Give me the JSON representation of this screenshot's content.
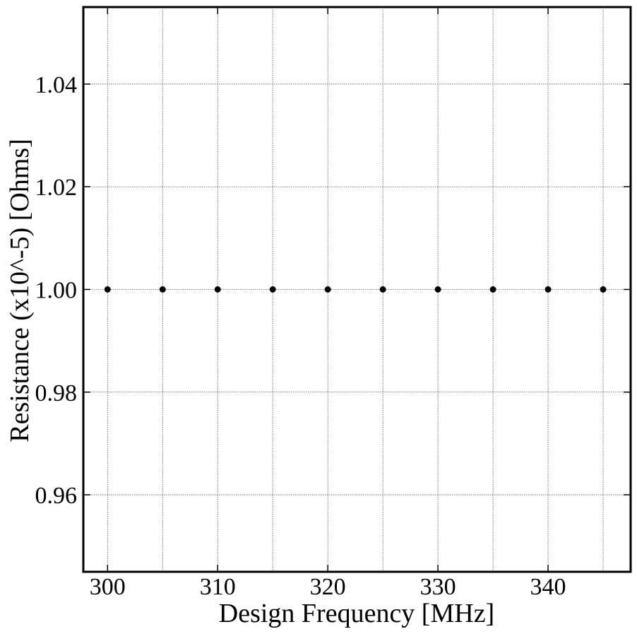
{
  "chart_data": {
    "type": "scatter",
    "title": "",
    "xlabel": "Design Frequency [MHz]",
    "ylabel": "Resistance (x10^-5) [Ohms]",
    "xlim": [
      297.8,
      347.5
    ],
    "ylim": [
      0.945,
      1.055
    ],
    "xticks": [
      300,
      310,
      320,
      330,
      340
    ],
    "xtick_labels": [
      "300",
      "310",
      "320",
      "330",
      "340"
    ],
    "yticks": [
      0.96,
      0.98,
      1.0,
      1.02,
      1.04
    ],
    "ytick_labels": [
      "0.96",
      "0.98",
      "1.00",
      "1.02",
      "1.04"
    ],
    "x_gridlines": [
      300,
      305,
      310,
      315,
      320,
      325,
      330,
      335,
      340,
      345
    ],
    "grid": true,
    "series": [
      {
        "color": "#000000",
        "marker": "circle",
        "x": [
          300,
          305,
          310,
          315,
          320,
          325,
          330,
          335,
          340,
          345
        ],
        "y": [
          1.0,
          1.0,
          1.0,
          1.0,
          1.0,
          1.0,
          1.0,
          1.0,
          1.0,
          1.0
        ]
      }
    ]
  }
}
